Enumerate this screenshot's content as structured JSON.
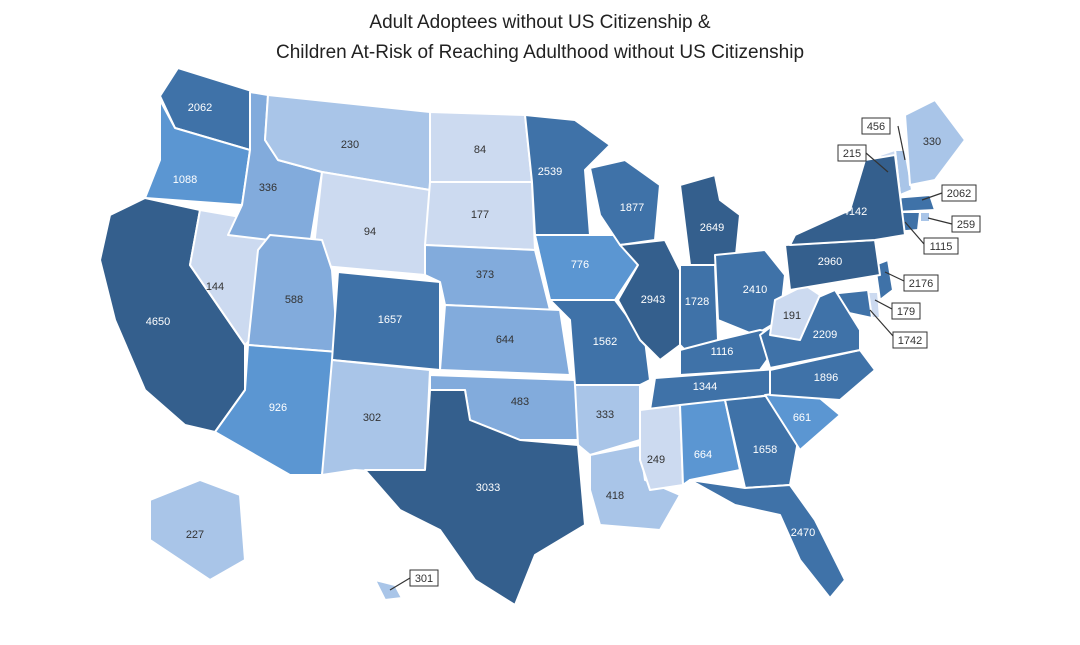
{
  "title": {
    "line1": "Adult Adoptees without US Citizenship &",
    "line2": "Children At-Risk of Reaching Adulthood without US Citizenship"
  },
  "colors": {
    "darkest": "#345f8d",
    "dark": "#3f72a8",
    "mid": "#5b96d2",
    "mid_light": "#82abdc",
    "light": "#a9c5e8",
    "lightest": "#ccdaf0"
  },
  "states": [
    {
      "id": "WA",
      "value": "2062"
    },
    {
      "id": "OR",
      "value": "1088"
    },
    {
      "id": "CA",
      "value": "4650"
    },
    {
      "id": "NV",
      "value": "144"
    },
    {
      "id": "ID",
      "value": "336"
    },
    {
      "id": "MT",
      "value": "230"
    },
    {
      "id": "WY",
      "value": "94"
    },
    {
      "id": "UT",
      "value": "588"
    },
    {
      "id": "AZ",
      "value": "926"
    },
    {
      "id": "CO",
      "value": "1657"
    },
    {
      "id": "NM",
      "value": "302"
    },
    {
      "id": "ND",
      "value": "84"
    },
    {
      "id": "SD",
      "value": "177"
    },
    {
      "id": "NE",
      "value": "373"
    },
    {
      "id": "KS",
      "value": "644"
    },
    {
      "id": "OK",
      "value": "483"
    },
    {
      "id": "TX",
      "value": "3033"
    },
    {
      "id": "MN",
      "value": "2539"
    },
    {
      "id": "IA",
      "value": "776"
    },
    {
      "id": "MO",
      "value": "1562"
    },
    {
      "id": "AR",
      "value": "333"
    },
    {
      "id": "LA",
      "value": "418"
    },
    {
      "id": "WI",
      "value": "1877"
    },
    {
      "id": "IL",
      "value": "2943"
    },
    {
      "id": "MI",
      "value": "2649"
    },
    {
      "id": "IN",
      "value": "1728"
    },
    {
      "id": "OH",
      "value": "2410"
    },
    {
      "id": "KY",
      "value": "1116"
    },
    {
      "id": "TN",
      "value": "1344"
    },
    {
      "id": "MS",
      "value": "249"
    },
    {
      "id": "AL",
      "value": "664"
    },
    {
      "id": "GA",
      "value": "1658"
    },
    {
      "id": "FL",
      "value": "2470"
    },
    {
      "id": "SC",
      "value": "661"
    },
    {
      "id": "NC",
      "value": "1896"
    },
    {
      "id": "VA",
      "value": "2209"
    },
    {
      "id": "WV",
      "value": "191"
    },
    {
      "id": "PA",
      "value": "2960"
    },
    {
      "id": "NY",
      "value": "4142"
    },
    {
      "id": "ME",
      "value": "330"
    },
    {
      "id": "AK",
      "value": "227"
    }
  ],
  "callouts": [
    {
      "id": "NH",
      "value": "456"
    },
    {
      "id": "VT",
      "value": "215"
    },
    {
      "id": "MA",
      "value": "2062"
    },
    {
      "id": "RI",
      "value": "259"
    },
    {
      "id": "CT",
      "value": "1115"
    },
    {
      "id": "NJ",
      "value": "2176"
    },
    {
      "id": "DE",
      "value": "179"
    },
    {
      "id": "MD",
      "value": "1742"
    },
    {
      "id": "HI",
      "value": "301"
    }
  ]
}
